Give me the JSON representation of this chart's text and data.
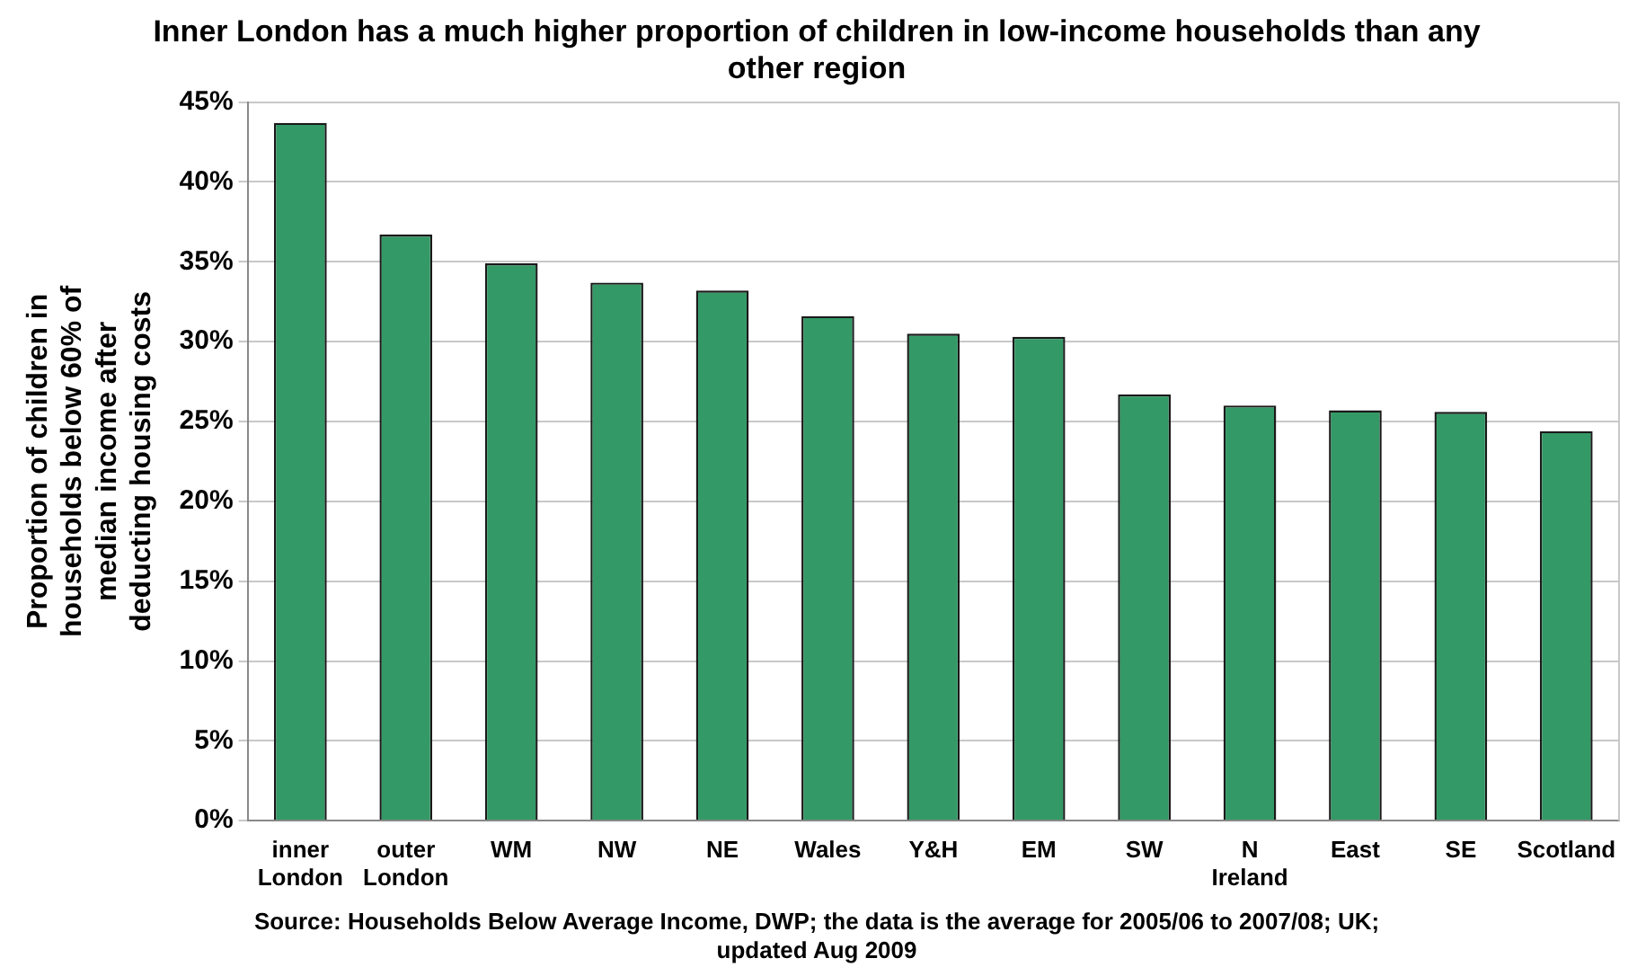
{
  "chart_data": {
    "type": "bar",
    "title": "Inner London has a much higher proportion of children in low-income households than any other region",
    "ylabel": "Proportion of children in households below 60% of median income after deducting housing costs",
    "annotations": [
      "Source: Households Below Average Income, DWP; the data is the average for 2005/06 to 2007/08; UK; updated Aug 2009"
    ],
    "categories": [
      "inner London",
      "outer London",
      "WM",
      "NW",
      "NE",
      "Wales",
      "Y&H",
      "EM",
      "SW",
      "N Ireland",
      "East",
      "SE",
      "Scotland"
    ],
    "values": [
      43.7,
      36.7,
      34.9,
      33.7,
      33.2,
      31.6,
      30.5,
      30.3,
      26.7,
      26.0,
      25.7,
      25.6,
      24.4
    ],
    "color": "#339966",
    "ylim": [
      0,
      45
    ],
    "yticks": [
      {
        "value": 0,
        "label": "0%"
      },
      {
        "value": 5,
        "label": "5%"
      },
      {
        "value": 10,
        "label": "10%"
      },
      {
        "value": 15,
        "label": "15%"
      },
      {
        "value": 20,
        "label": "20%"
      },
      {
        "value": 25,
        "label": "25%"
      },
      {
        "value": 30,
        "label": "30%"
      },
      {
        "value": 35,
        "label": "35%"
      },
      {
        "value": 40,
        "label": "40%"
      },
      {
        "value": 45,
        "label": "45%"
      }
    ],
    "grid": "y",
    "legend": false
  }
}
